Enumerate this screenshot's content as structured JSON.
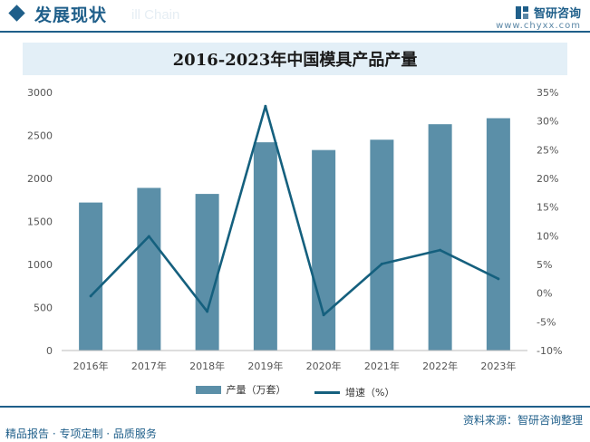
{
  "header": {
    "title": "发展现状",
    "watermark": "ill Chain",
    "brand_name": "智研咨询",
    "brand_url": "www.chyxx.com"
  },
  "colors": {
    "primary": "#1f5f8a",
    "bar": "#5b8fa8",
    "line": "#15607e",
    "band": "#e3eff7"
  },
  "chart_data": {
    "type": "bar",
    "title": "2016-2023年中国模具产品产量",
    "categories": [
      "2016年",
      "2017年",
      "2018年",
      "2019年",
      "2020年",
      "2021年",
      "2022年",
      "2023年"
    ],
    "series": [
      {
        "name": "产量（万套）",
        "type": "bar",
        "axis": "left",
        "values": [
          1720,
          1890,
          1820,
          2420,
          2330,
          2450,
          2630,
          2700
        ]
      },
      {
        "name": "增速（%）",
        "type": "line",
        "axis": "right",
        "values": [
          -0.5,
          9.9,
          -3.2,
          32.6,
          -3.8,
          5.1,
          7.5,
          2.5
        ]
      }
    ],
    "y_left": {
      "min": 0,
      "max": 3000,
      "ticks": [
        "0",
        "500",
        "1000",
        "1500",
        "2000",
        "2500",
        "3000"
      ]
    },
    "y_right": {
      "min": -10,
      "max": 35,
      "ticks": [
        "-10%",
        "-5%",
        "0%",
        "5%",
        "10%",
        "15%",
        "20%",
        "25%",
        "30%",
        "35%"
      ]
    },
    "legend_position": "bottom"
  },
  "footer": {
    "source": "资料来源：智研咨询整理",
    "tagline": "精品报告 · 专项定制 · 品质服务"
  }
}
